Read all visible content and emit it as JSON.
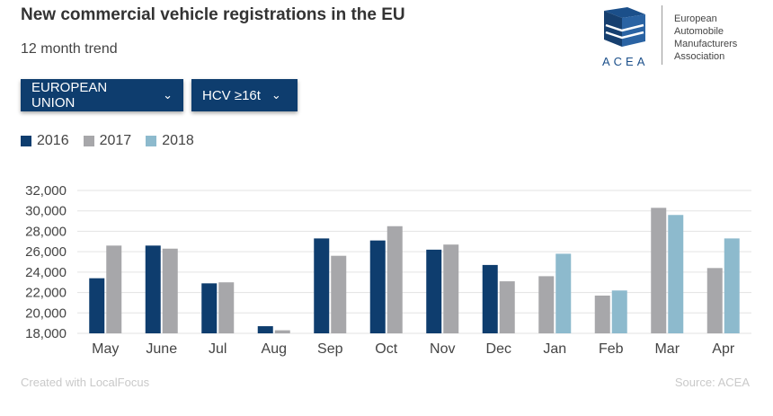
{
  "header": {
    "title": "New commercial vehicle registrations in the EU",
    "subtitle": "12 month trend"
  },
  "filters": {
    "region": "EUROPEAN UNION",
    "vehicle": "HCV ≥16t"
  },
  "logo": {
    "wordmark": "ACEA",
    "name_lines": [
      "European",
      "Automobile",
      "Manufacturers",
      "Association"
    ]
  },
  "footer": {
    "credit": "Created with LocalFocus",
    "source": "Source: ACEA"
  },
  "colors": {
    "s2016": "#0e3d6e",
    "s2017": "#a7a7aa",
    "s2018": "#8dbacd",
    "grid": "#e3e3e3",
    "axis_text": "#444444"
  },
  "chart_data": {
    "type": "bar",
    "categories": [
      "May",
      "June",
      "Jul",
      "Aug",
      "Sep",
      "Oct",
      "Nov",
      "Dec",
      "Jan",
      "Feb",
      "Mar",
      "Apr"
    ],
    "series": [
      {
        "name": "2016",
        "values": [
          23400,
          26600,
          22900,
          18700,
          27300,
          27100,
          26200,
          24700,
          null,
          null,
          null,
          null
        ]
      },
      {
        "name": "2017",
        "values": [
          26600,
          26300,
          23000,
          18300,
          25600,
          28500,
          26700,
          23100,
          23600,
          21700,
          30300,
          24400
        ]
      },
      {
        "name": "2018",
        "values": [
          null,
          null,
          null,
          null,
          null,
          null,
          null,
          null,
          25800,
          22200,
          29600,
          27300
        ]
      }
    ],
    "ylim": [
      18000,
      32000
    ],
    "yticks": [
      18000,
      20000,
      22000,
      24000,
      26000,
      28000,
      30000,
      32000
    ],
    "ytick_labels": [
      "18,000",
      "20,000",
      "22,000",
      "24,000",
      "26,000",
      "28,000",
      "30,000",
      "32,000"
    ],
    "grid": true,
    "legend": "top-left"
  }
}
